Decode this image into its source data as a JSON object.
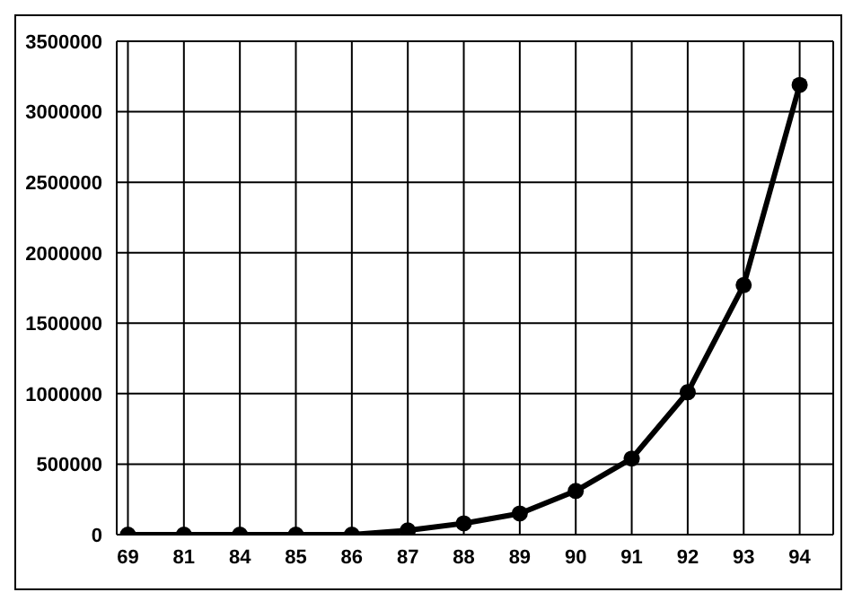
{
  "chart_data": {
    "type": "line",
    "categories": [
      "69",
      "81",
      "84",
      "85",
      "86",
      "87",
      "88",
      "89",
      "90",
      "91",
      "92",
      "93",
      "94"
    ],
    "series": [
      {
        "color": "#000000",
        "values": [
          0,
          0,
          0,
          0,
          0,
          30000,
          80000,
          150000,
          310000,
          540000,
          1010000,
          1770000,
          3190000
        ]
      }
    ],
    "ylim": [
      0,
      3500000
    ],
    "yticks": [
      0,
      500000,
      1000000,
      1500000,
      2000000,
      2500000,
      3000000,
      3500000
    ],
    "grid": true,
    "marker": "circle",
    "line_style": "solid",
    "legend": false
  }
}
